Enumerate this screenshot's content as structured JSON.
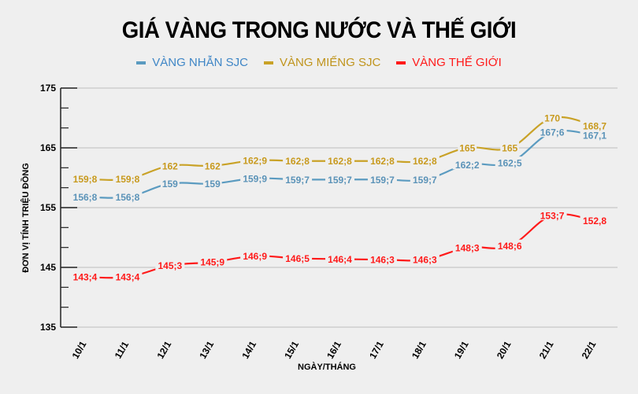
{
  "title": "GIÁ VÀNG TRONG NƯỚC VÀ THẾ GIỚI",
  "legend": [
    {
      "label": "VÀNG NHẪN SJC",
      "color": "#5b9bc0",
      "text_color": "#3f86c6"
    },
    {
      "label": "VÀNG MIẾNG SJC",
      "color": "#c9a227",
      "text_color": "#c0941c"
    },
    {
      "label": "VÀNG THẾ GIỚI",
      "color": "#ff1a1a",
      "text_color": "#ff1a1a"
    }
  ],
  "y_axis_title": "ĐƠN VỊ TÍNH TRIỆU ĐỒNG",
  "x_axis_title": "NGÀY/THÁNG",
  "chart_data": {
    "type": "line",
    "title": "GIÁ VÀNG TRONG NƯỚC VÀ THẾ GIỚI",
    "xlabel": "NGÀY/THÁNG",
    "ylabel": "ĐƠN VỊ TÍNH TRIỆU ĐỒNG",
    "ylim": [
      135,
      175
    ],
    "yticks": [
      135,
      145,
      155,
      165,
      175
    ],
    "grid": true,
    "legend_position": "top",
    "categories": [
      "10/1",
      "11/1",
      "12/1",
      "13/1",
      "14/1",
      "15/1",
      "16/1",
      "17/1",
      "18/1",
      "19/1",
      "20/1",
      "21/1",
      "22/1"
    ],
    "series": [
      {
        "name": "VÀNG NHẪN SJC",
        "color": "#5b9bc0",
        "values": [
          156.8,
          156.8,
          159,
          159,
          159.9,
          159.7,
          159.7,
          159.7,
          159.7,
          162.2,
          162.5,
          167.6,
          167.1
        ],
        "labels": [
          "156;8",
          "156;8",
          "159",
          "159",
          "159;9",
          "159;7",
          "159;7",
          "159;7",
          "159;7",
          "162;2",
          "162;5",
          "167;6",
          "167,1"
        ]
      },
      {
        "name": "VÀNG MIẾNG SJC",
        "color": "#c9a227",
        "values": [
          159.8,
          159.8,
          162,
          162,
          162.9,
          162.8,
          162.8,
          162.8,
          162.8,
          165,
          165,
          170,
          168.7
        ],
        "labels": [
          "159;8",
          "159;8",
          "162",
          "162",
          "162;9",
          "162;8",
          "162;8",
          "162;8",
          "162;8",
          "165",
          "165",
          "170",
          "168,7"
        ]
      },
      {
        "name": "VÀNG THẾ GIỚI",
        "color": "#ff1a1a",
        "values": [
          143.4,
          143.4,
          145.3,
          145.9,
          146.9,
          146.5,
          146.4,
          146.3,
          146.3,
          148.3,
          148.6,
          153.7,
          152.8
        ],
        "labels": [
          "143;4",
          "143;4",
          "145;3",
          "145;9",
          "146;9",
          "146;5",
          "146;4",
          "146;3",
          "146;3",
          "148;3",
          "148;6",
          "153;7",
          "152,8"
        ]
      }
    ]
  }
}
